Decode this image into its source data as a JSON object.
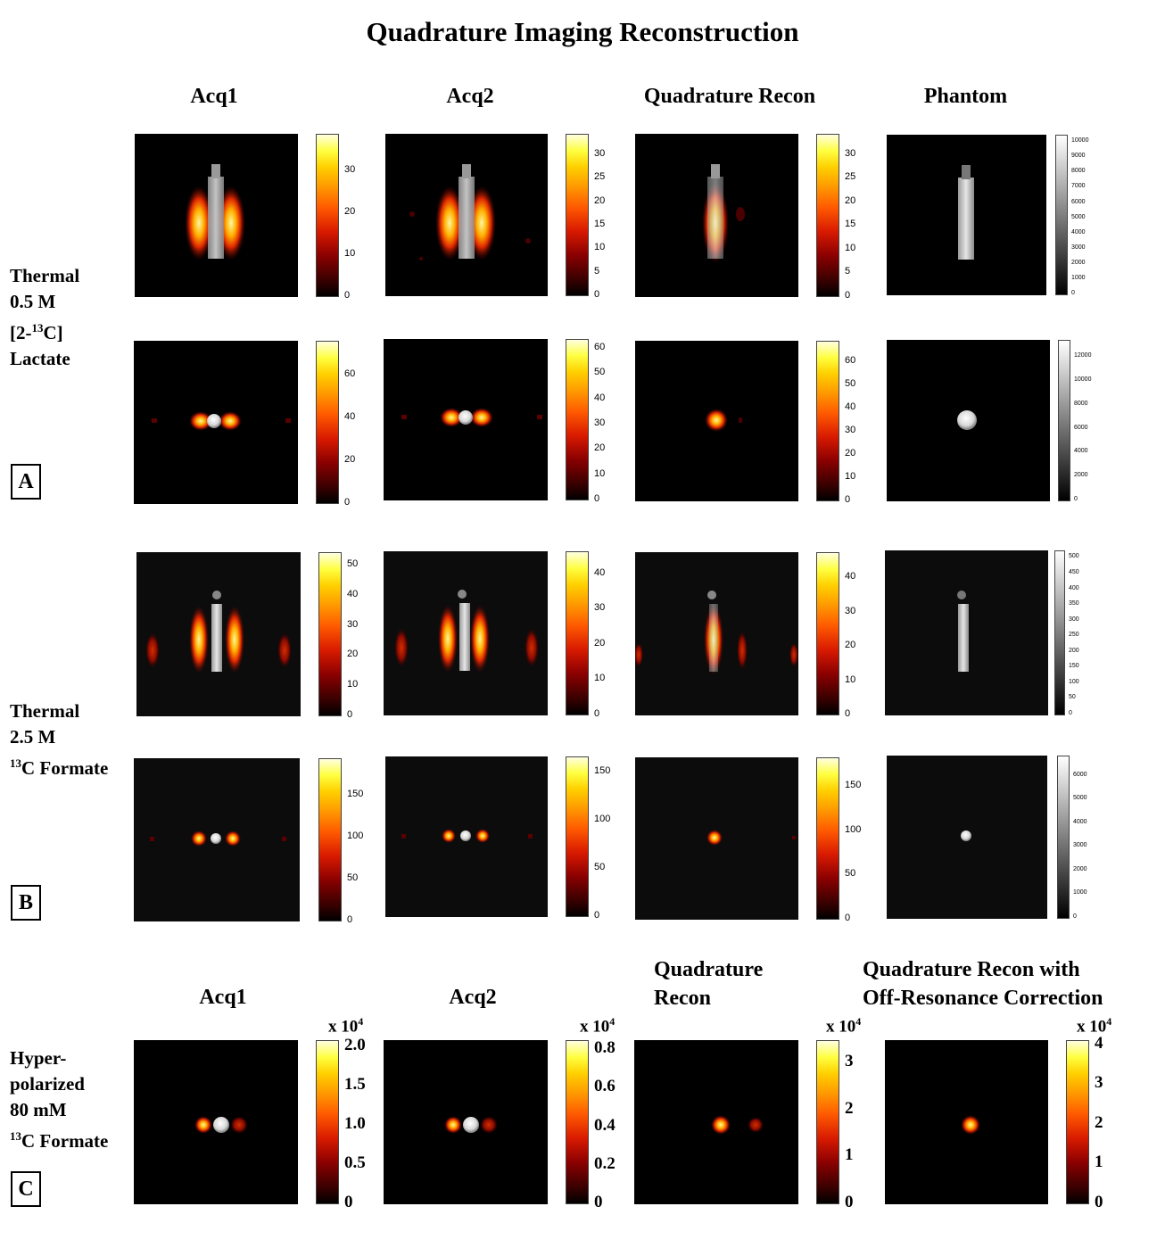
{
  "title": "Quadrature Imaging Reconstruction",
  "columns_top": [
    "Acq1",
    "Acq2",
    "Quadrature Recon",
    "Phantom"
  ],
  "columns_bottom": [
    "Acq1",
    "Acq2",
    "Quadrature Recon",
    "Quadrature Recon with Off-Resonance Correction"
  ],
  "columns_bottom_lines": {
    "quad_l1": "Quadrature",
    "quad_l2": "Recon",
    "off_l1": "Quadrature Recon with",
    "off_l2": "Off-Resonance Correction"
  },
  "row_labels": {
    "A": {
      "l1": "Thermal",
      "l2": "0.5 M",
      "l3_pre": "[2-",
      "l3_sup": "13",
      "l3_post": "C]",
      "l4": "Lactate"
    },
    "B": {
      "l1": "Thermal",
      "l2": "2.5 M",
      "l3_sup": "13",
      "l3_post": "C Formate"
    },
    "C": {
      "l1": "Hyper-",
      "l2": "polarized",
      "l3": "80 mM",
      "l4_sup": "13",
      "l4_post": "C Formate"
    }
  },
  "panel_letters": [
    "A",
    "B",
    "C"
  ],
  "scale_prefix": "x 10",
  "scale_exp": "4",
  "colorbars": {
    "a1_acq1": [
      "30",
      "20",
      "10",
      "0"
    ],
    "a1_acq2": [
      "30",
      "25",
      "20",
      "15",
      "10",
      "5",
      "0"
    ],
    "a1_quad": [
      "30",
      "25",
      "20",
      "15",
      "10",
      "5",
      "0"
    ],
    "a1_phan": [
      "10000",
      "9000",
      "8000",
      "7000",
      "6000",
      "5000",
      "4000",
      "3000",
      "2000",
      "1000",
      "0"
    ],
    "a2_acq1": [
      "60",
      "40",
      "20",
      "0"
    ],
    "a2_acq2": [
      "60",
      "50",
      "40",
      "30",
      "20",
      "10",
      "0"
    ],
    "a2_quad": [
      "60",
      "50",
      "40",
      "30",
      "20",
      "10",
      "0"
    ],
    "a2_phan": [
      "12000",
      "10000",
      "8000",
      "6000",
      "4000",
      "2000",
      "0"
    ],
    "b1_acq1": [
      "50",
      "40",
      "30",
      "20",
      "10",
      "0"
    ],
    "b1_acq2": [
      "40",
      "30",
      "20",
      "10",
      "0"
    ],
    "b1_quad": [
      "40",
      "30",
      "20",
      "10",
      "0"
    ],
    "b1_phan": [
      "500",
      "450",
      "400",
      "350",
      "300",
      "250",
      "200",
      "150",
      "100",
      "50",
      "0"
    ],
    "b2_acq1": [
      "150",
      "100",
      "50",
      "0"
    ],
    "b2_acq2": [
      "150",
      "100",
      "50",
      "0"
    ],
    "b2_quad": [
      "150",
      "100",
      "50",
      "0"
    ],
    "b2_phan": [
      "6000",
      "5000",
      "4000",
      "3000",
      "2000",
      "1000",
      "0"
    ],
    "c_acq1": [
      "2.0",
      "1.5",
      "1.0",
      "0.5",
      "0"
    ],
    "c_acq2": [
      "0.8",
      "0.6",
      "0.4",
      "0.2",
      "0"
    ],
    "c_quad": [
      "3",
      "2",
      "1",
      "0"
    ],
    "c_off": [
      "4",
      "3",
      "2",
      "1",
      "0"
    ]
  }
}
